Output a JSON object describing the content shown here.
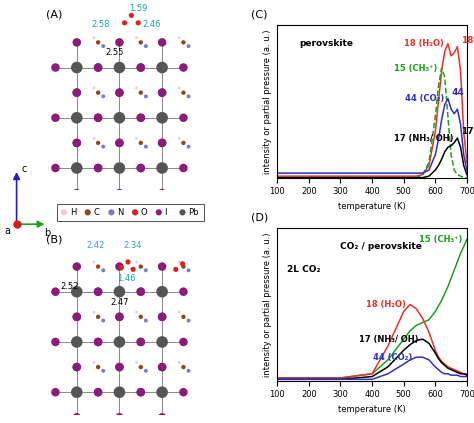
{
  "structures": {
    "panels": [
      {
        "label": "(A)",
        "distances": [
          {
            "text": "1.59",
            "color": "#1aa3a3"
          },
          {
            "text": "2.58",
            "color": "#1aa3a3"
          },
          {
            "text": "2.46",
            "color": "#1aa3a3"
          },
          {
            "text": "2.55",
            "color": "#000000"
          }
        ]
      },
      {
        "label": "(B)",
        "distances": [
          {
            "text": "2.42",
            "color": "#3aa0d0"
          },
          {
            "text": "2.34",
            "color": "#3aa0d0"
          },
          {
            "text": "1.46",
            "color": "#1aa3a3"
          },
          {
            "text": "2.52",
            "color": "#000000"
          },
          {
            "text": "2.47",
            "color": "#000000"
          }
        ]
      }
    ],
    "legend": [
      {
        "name": "H",
        "color": "#f2cccc"
      },
      {
        "name": "C",
        "color": "#8b4a1c"
      },
      {
        "name": "N",
        "color": "#7a7ad0"
      },
      {
        "name": "O",
        "color": "#e02020"
      },
      {
        "name": "I",
        "color": "#8b1c7a"
      },
      {
        "name": "Pb",
        "color": "#555555"
      }
    ],
    "axis_labels": [
      "c",
      "a",
      "b"
    ]
  },
  "chart_data": [
    {
      "type": "line",
      "title": "(C)",
      "xlabel": "temperature (K)",
      "ylabel": "intensity or partial pressure (a. u.)",
      "x": [
        100,
        200,
        300,
        400,
        450,
        500,
        520,
        540,
        560,
        580,
        600,
        610,
        620,
        630,
        640,
        650,
        660,
        670,
        680,
        690,
        700
      ],
      "xlim": [
        100,
        700
      ],
      "xticks": [
        100,
        200,
        300,
        400,
        500,
        600,
        700
      ],
      "ylim": [
        0,
        1
      ],
      "yticks": [],
      "tick_labels": "x",
      "series": [
        {
          "name": "18 (H₂O)",
          "color": "#e8312a",
          "line_style": "solid",
          "values": [
            0.01,
            0.01,
            0.01,
            0.01,
            0.01,
            0.01,
            0.01,
            0.01,
            0.02,
            0.08,
            0.3,
            0.5,
            0.7,
            0.83,
            0.88,
            0.8,
            0.82,
            0.86,
            0.7,
            0.3,
            0.1
          ]
        },
        {
          "name": "15 (CH₃⁺)",
          "color": "#1aa01a",
          "line_style": "dashed",
          "values": [
            0,
            0,
            0,
            0,
            0,
            0,
            0,
            0,
            0.02,
            0.1,
            0.4,
            0.6,
            0.72,
            0.66,
            0.4,
            0.15,
            0.05,
            0.02,
            0.01,
            0,
            0
          ]
        },
        {
          "name": "44 (CO₂)",
          "color": "#3030c0",
          "line_style": "solid",
          "values": [
            0.03,
            0.03,
            0.03,
            0.03,
            0.03,
            0.03,
            0.03,
            0.03,
            0.03,
            0.05,
            0.15,
            0.25,
            0.38,
            0.48,
            0.52,
            0.45,
            0.42,
            0.45,
            0.35,
            0.15,
            0.05
          ]
        },
        {
          "name": "17 (NH₃/ OH)",
          "color": "#000000",
          "line_style": "solid",
          "values": [
            0,
            0,
            0,
            0,
            0,
            0,
            0,
            0,
            0,
            0.01,
            0.05,
            0.08,
            0.12,
            0.17,
            0.2,
            0.21,
            0.23,
            0.26,
            0.2,
            0.08,
            0.02
          ]
        }
      ],
      "annotations": [
        {
          "text": "perovskite",
          "x": 170,
          "y": 0.88,
          "color": "#000000"
        },
        {
          "text": "18",
          "x": 680,
          "y": 0.9,
          "color": "#e8312a"
        },
        {
          "text": "44",
          "x": 650,
          "y": 0.56,
          "color": "#3030c0"
        },
        {
          "text": "17",
          "x": 680,
          "y": 0.3,
          "color": "#000000"
        }
      ]
    },
    {
      "type": "line",
      "title": "(D)",
      "xlabel": "temperature (K)",
      "ylabel": "intensity or partial pressure (a. u.)",
      "x": [
        100,
        200,
        300,
        400,
        450,
        500,
        520,
        540,
        560,
        580,
        600,
        610,
        620,
        630,
        640,
        650,
        660,
        670,
        680,
        690,
        700
      ],
      "xlim": [
        100,
        700
      ],
      "xticks": [
        100,
        200,
        300,
        400,
        500,
        600,
        700
      ],
      "ylim": [
        0,
        1.1
      ],
      "yticks": [],
      "tick_labels": "x",
      "series": [
        {
          "name": "15 (CH₃⁺)",
          "color": "#1aa01a",
          "line_style": "solid",
          "values": [
            0.02,
            0.02,
            0.02,
            0.05,
            0.15,
            0.3,
            0.36,
            0.4,
            0.42,
            0.44,
            0.5,
            0.54,
            0.58,
            0.63,
            0.68,
            0.74,
            0.8,
            0.86,
            0.92,
            0.97,
            1.02
          ]
        },
        {
          "name": "18 (H₂O)",
          "color": "#e8312a",
          "line_style": "solid",
          "values": [
            0.02,
            0.02,
            0.02,
            0.05,
            0.25,
            0.5,
            0.55,
            0.52,
            0.45,
            0.35,
            0.22,
            0.17,
            0.14,
            0.12,
            0.1,
            0.09,
            0.08,
            0.07,
            0.06,
            0.05,
            0.05
          ]
        },
        {
          "name": "17 (NH₃/ OH)",
          "color": "#000000",
          "line_style": "solid",
          "values": [
            0.01,
            0.01,
            0.01,
            0.03,
            0.1,
            0.22,
            0.26,
            0.29,
            0.3,
            0.27,
            0.2,
            0.16,
            0.13,
            0.11,
            0.09,
            0.08,
            0.07,
            0.06,
            0.05,
            0.05,
            0.04
          ]
        },
        {
          "name": "44 (CO₂)",
          "color": "#3030c0",
          "line_style": "solid",
          "values": [
            0.01,
            0.01,
            0.01,
            0.01,
            0.05,
            0.12,
            0.15,
            0.17,
            0.17,
            0.15,
            0.1,
            0.08,
            0.06,
            0.05,
            0.05,
            0.04,
            0.04,
            0.04,
            0.03,
            0.03,
            0.03
          ]
        }
      ],
      "annotations": [
        {
          "text": "CO₂ / perovskite",
          "x": 300,
          "y": 0.97,
          "color": "#000000"
        },
        {
          "text": "2L CO₂",
          "x": 130,
          "y": 0.8,
          "color": "#000000"
        }
      ]
    }
  ]
}
